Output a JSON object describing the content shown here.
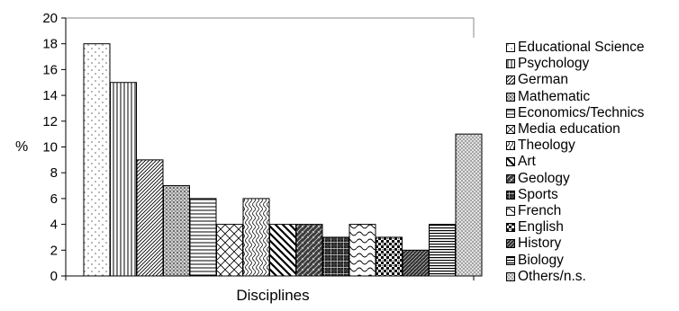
{
  "chart_data": {
    "type": "bar",
    "title": "",
    "xlabel": "Disciplines",
    "ylabel": "%",
    "ylim": [
      0,
      20
    ],
    "yticks": [
      "0",
      "2",
      "4",
      "6",
      "8",
      "10",
      "12",
      "14",
      "16",
      "18",
      "20"
    ],
    "grid": false,
    "legend_position": "right",
    "categories": [
      "Educational Science",
      "Psychology",
      "German",
      "Mathematic",
      "Economics/Technics",
      "Media education",
      "Theology",
      "Art",
      "Geology",
      "Sports",
      "French",
      "English",
      "History",
      "Biology",
      "Others/n.s."
    ],
    "values": [
      18,
      15,
      9,
      7,
      6,
      4,
      6,
      4,
      4,
      3,
      4,
      3,
      2,
      4,
      11
    ],
    "patterns": [
      "dots-sparse",
      "vertical-lines",
      "diagonal-fine",
      "grid-dots",
      "horizontal-lines",
      "diamond-lattice",
      "wavy-vertical",
      "diagonal-wide",
      "dark-weave",
      "dark-grid",
      "waves",
      "dark-checker",
      "dark-diagonal",
      "dense-horizontal",
      "dots-dense"
    ]
  }
}
